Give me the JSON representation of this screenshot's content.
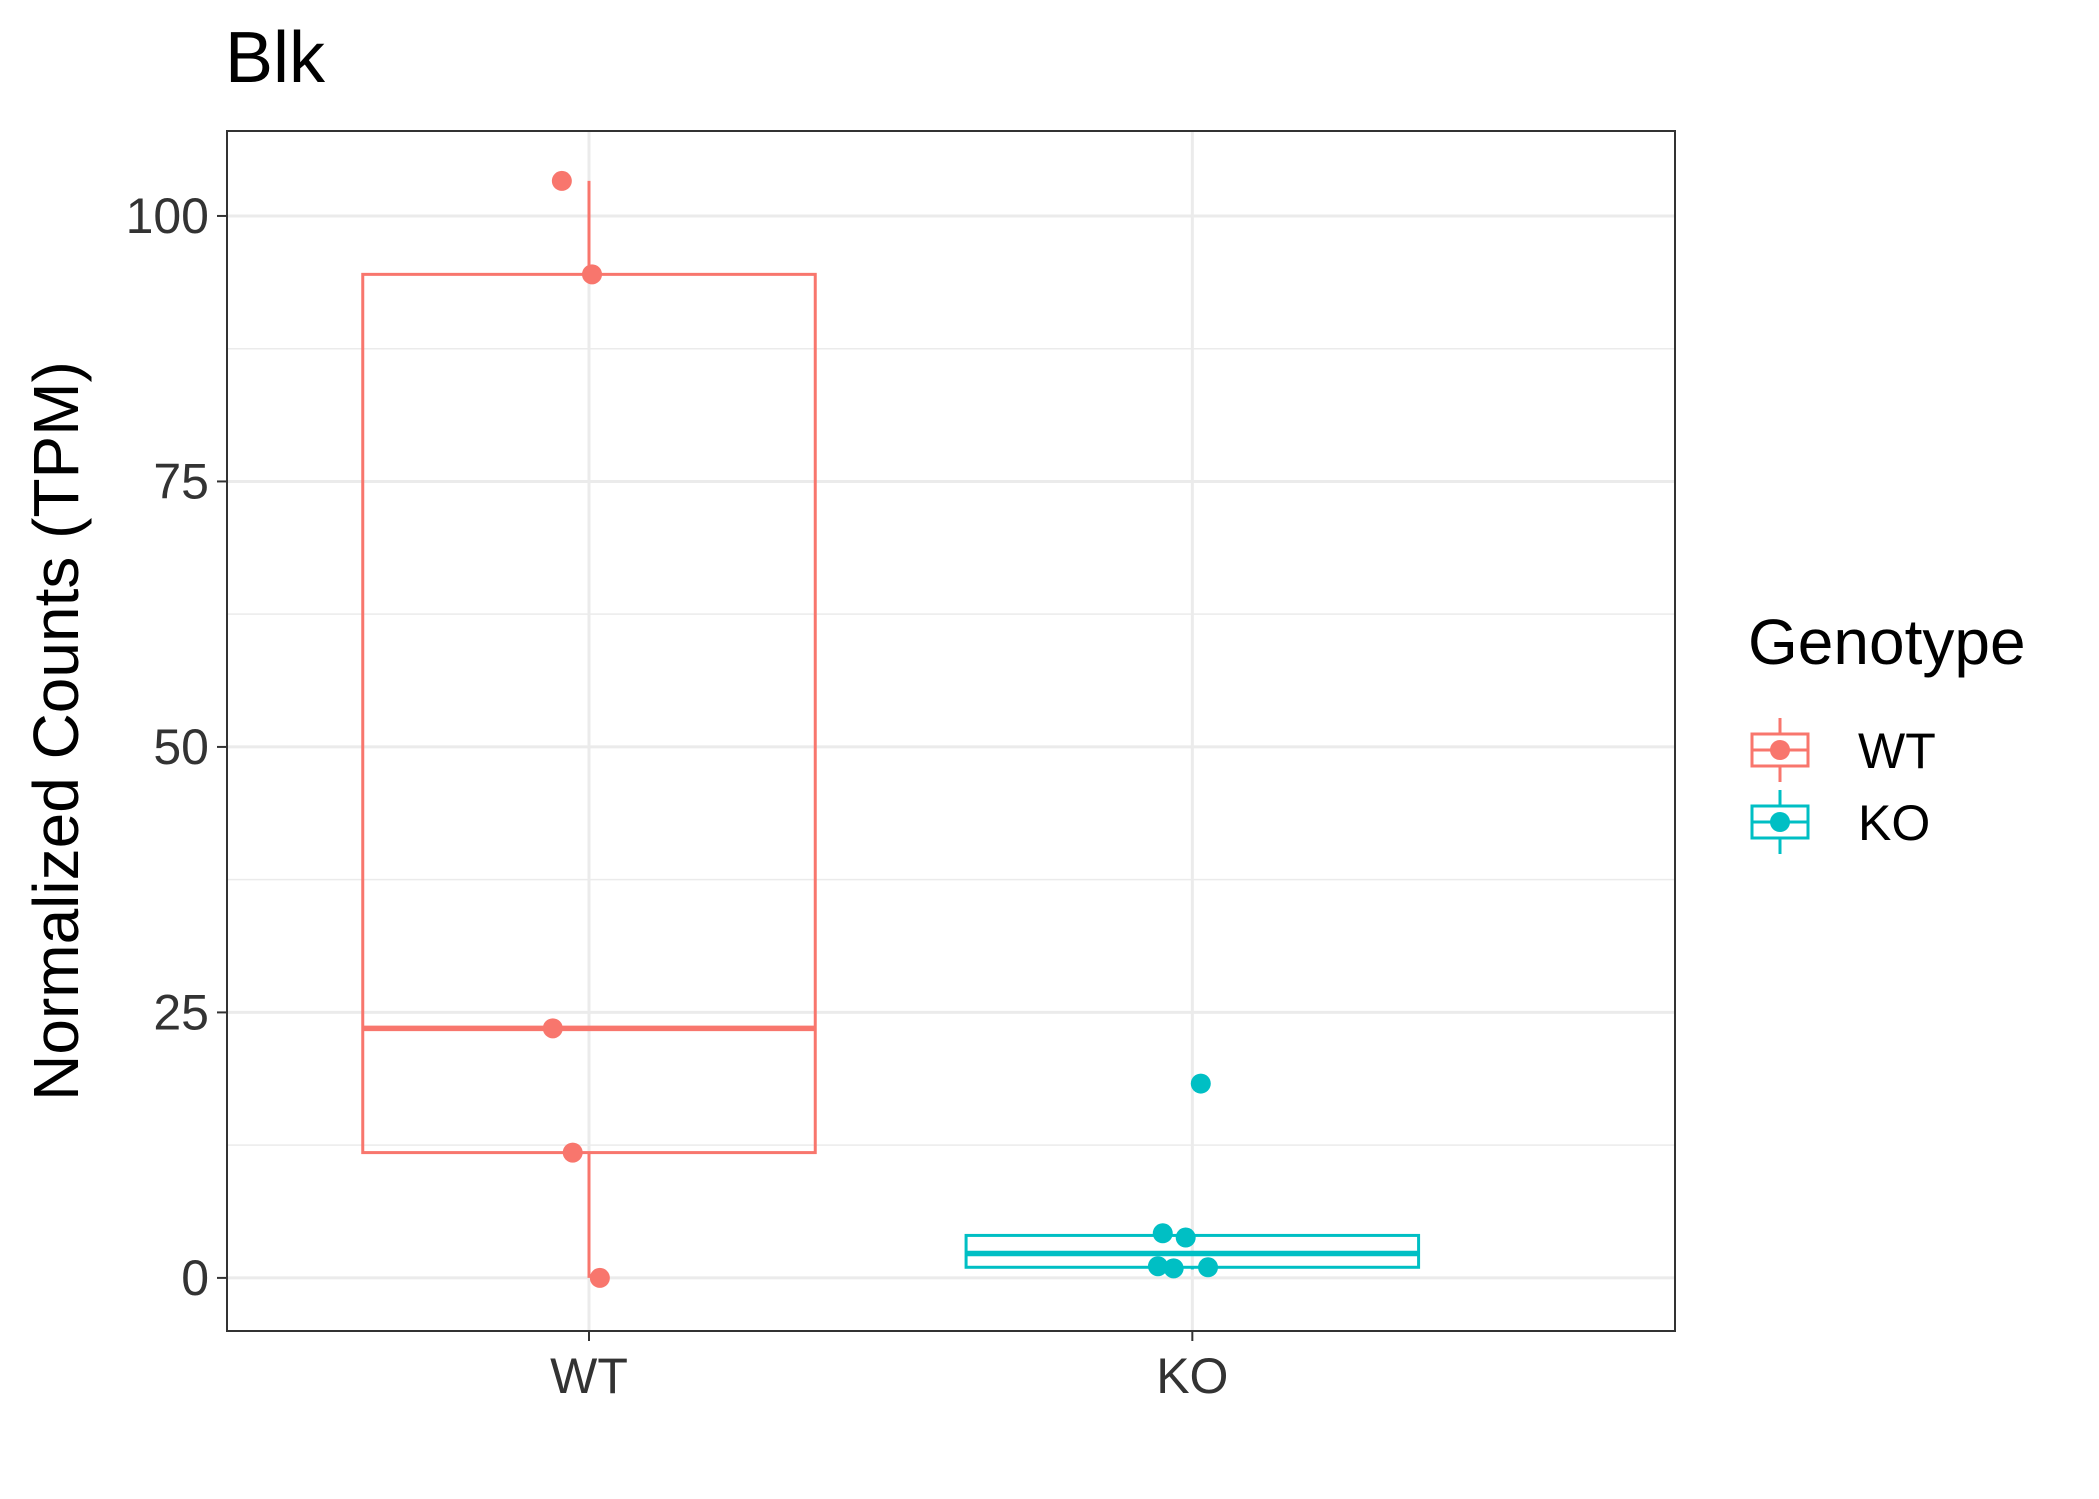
{
  "chart_data": {
    "type": "boxplot",
    "title": "Blk",
    "xlabel": "",
    "ylabel": "Normalized Counts (TPM)",
    "categories": [
      "WT",
      "KO"
    ],
    "ylim": [
      -5,
      108
    ],
    "yticks": [
      0,
      25,
      50,
      75,
      100
    ],
    "grid": true,
    "legend": {
      "title": "Genotype",
      "position": "right",
      "entries": [
        "WT",
        "KO"
      ]
    },
    "series": [
      {
        "name": "WT",
        "color": "#F8766D",
        "box": {
          "whisker_low": 0,
          "q1": 11.8,
          "median": 23.5,
          "q3": 94.5,
          "whisker_high": 103.3
        },
        "points": [
          {
            "x_offset": -0.045,
            "y": 103.3
          },
          {
            "x_offset": 0.005,
            "y": 94.5
          },
          {
            "x_offset": -0.06,
            "y": 23.5
          },
          {
            "x_offset": -0.027,
            "y": 11.8
          },
          {
            "x_offset": 0.018,
            "y": 0.0
          }
        ]
      },
      {
        "name": "KO",
        "color": "#00BFC4",
        "box": {
          "whisker_low": 0.8,
          "q1": 1.0,
          "median": 2.3,
          "q3": 4.0,
          "whisker_high": 4.3
        },
        "points": [
          {
            "x_offset": 0.014,
            "y": 18.3
          },
          {
            "x_offset": -0.049,
            "y": 4.2
          },
          {
            "x_offset": -0.011,
            "y": 3.8
          },
          {
            "x_offset": -0.057,
            "y": 1.1
          },
          {
            "x_offset": -0.031,
            "y": 0.9
          },
          {
            "x_offset": 0.026,
            "y": 1.0
          }
        ]
      }
    ]
  }
}
